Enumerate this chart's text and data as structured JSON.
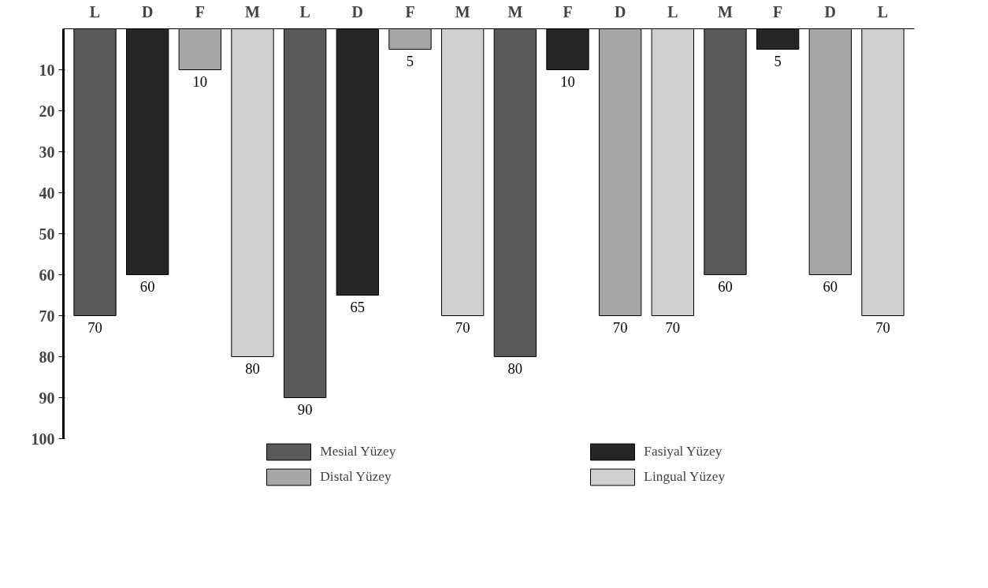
{
  "chart_data": {
    "type": "bar",
    "categories": [
      "L",
      "D",
      "F",
      "M",
      "L",
      "D",
      "F",
      "M",
      "M",
      "F",
      "D",
      "L",
      "M",
      "F",
      "D",
      "L"
    ],
    "series": [
      {
        "name": "Mesial Yüzey",
        "color": "#595959",
        "values": [
          70,
          null,
          null,
          null,
          90,
          null,
          null,
          null,
          80,
          null,
          null,
          null,
          60,
          null,
          null,
          null
        ]
      },
      {
        "name": "Fasiyal Yüzey",
        "color": "#262626",
        "values": [
          null,
          60,
          null,
          null,
          null,
          65,
          null,
          null,
          null,
          10,
          null,
          null,
          null,
          5,
          null,
          null
        ]
      },
      {
        "name": "Distal Yüzey",
        "color": "#a6a6a6",
        "values": [
          null,
          null,
          10,
          null,
          null,
          null,
          5,
          null,
          null,
          null,
          70,
          null,
          null,
          null,
          60,
          null
        ]
      },
      {
        "name": "Lingual Yüzey",
        "color": "#d0d0d0",
        "values": [
          null,
          null,
          null,
          80,
          null,
          null,
          null,
          70,
          null,
          null,
          null,
          70,
          null,
          null,
          null,
          70
        ]
      }
    ],
    "ylim": [
      100,
      0
    ],
    "yticks": [
      10,
      20,
      30,
      40,
      50,
      60,
      70,
      80,
      90,
      100
    ],
    "data_labels": true,
    "grid": false,
    "legend": "bottom"
  }
}
